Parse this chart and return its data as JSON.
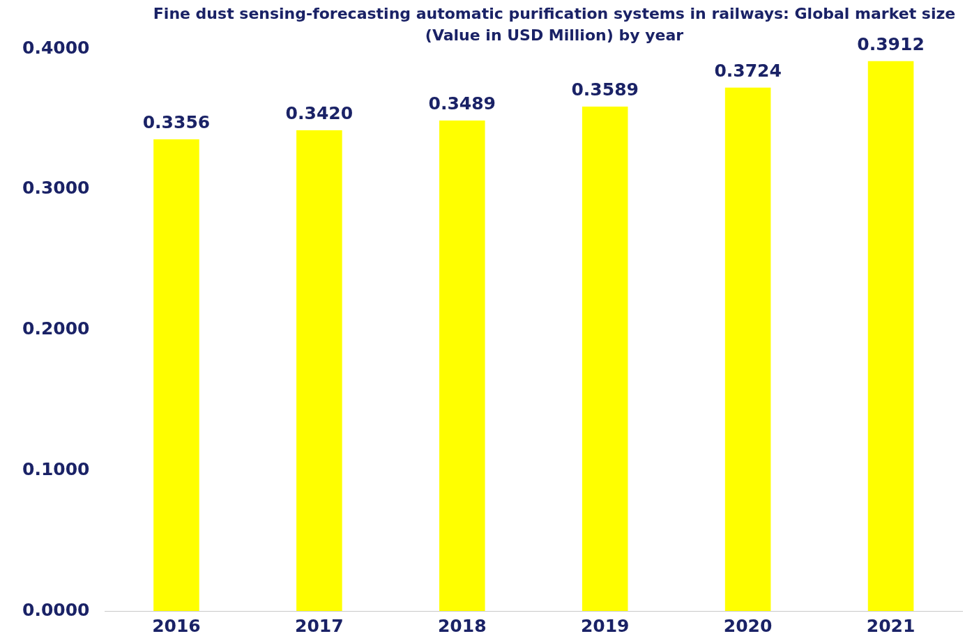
{
  "chart_data": {
    "type": "bar",
    "title": "Fine dust sensing-forecasting automatic purification systems in railways: Global market size (Value in USD Million) by year",
    "categories": [
      "2016",
      "2017",
      "2018",
      "2019",
      "2020",
      "2021"
    ],
    "values": [
      0.3356,
      0.342,
      0.3489,
      0.3589,
      0.3724,
      0.3912
    ],
    "value_labels": [
      "0.3356",
      "0.3420",
      "0.3489",
      "0.3589",
      "0.3724",
      "0.3912"
    ],
    "color": "#ffff00",
    "ylim": [
      0,
      0.4
    ],
    "yticks": [
      {
        "value": 0,
        "label": "0.0000"
      },
      {
        "value": 0.1,
        "label": "0.1000"
      },
      {
        "value": 0.2,
        "label": "0.2000"
      },
      {
        "value": 0.3,
        "label": "0.3000"
      },
      {
        "value": 0.4,
        "label": "0.4000"
      }
    ],
    "grid": false,
    "legend": false
  }
}
